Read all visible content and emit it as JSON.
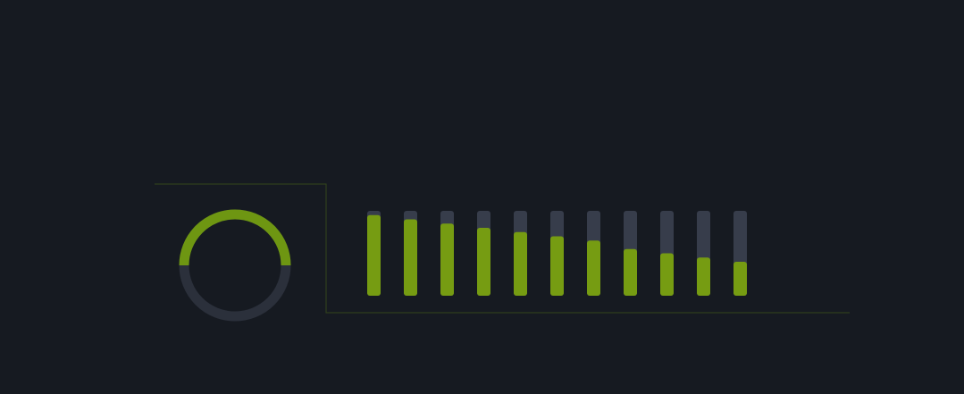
{
  "gauge": {
    "value": 50,
    "range": [
      0,
      100
    ],
    "color": "#6e9612",
    "track_color": "#2b303b"
  },
  "bars": {
    "values": [
      95,
      90,
      85,
      80,
      75,
      70,
      65,
      55,
      50,
      45,
      40
    ],
    "ylim": [
      0,
      100
    ],
    "color": "#769c12",
    "track_color": "#373d4b"
  }
}
